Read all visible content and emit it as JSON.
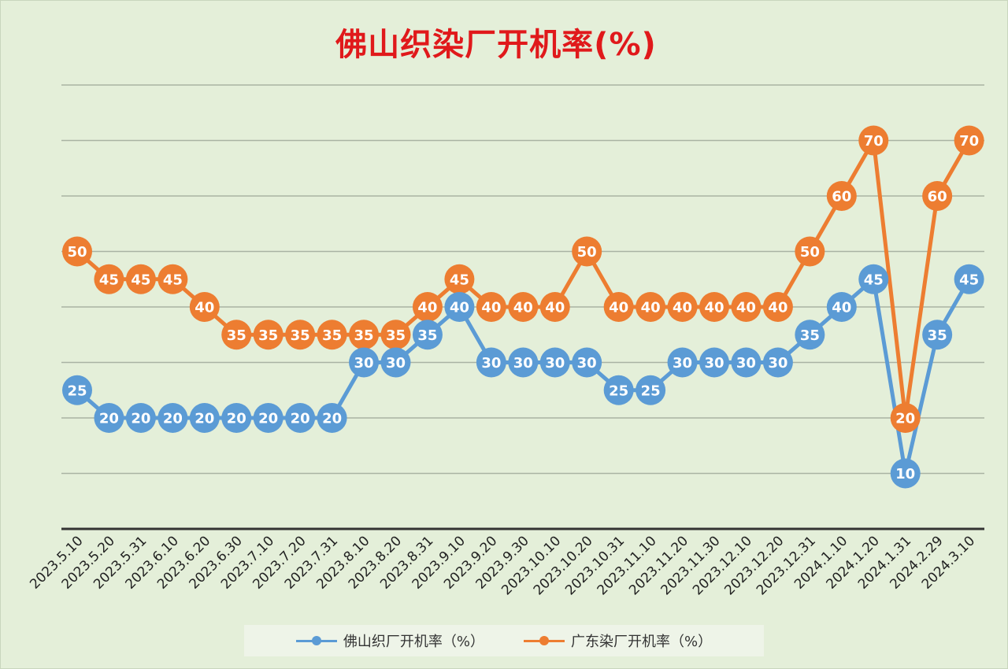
{
  "colors": {
    "blue": "#5b9bd5",
    "orange": "#ed7d31",
    "title": "#e0191b",
    "grid": "#a9b3a3",
    "axis": "#333333"
  },
  "chart_data": {
    "type": "line",
    "title": "佛山织染厂开机率(%)",
    "xlabel": "",
    "ylabel": "",
    "ylim": [
      0,
      80
    ],
    "grid": true,
    "legend_position": "bottom",
    "categories": [
      "2023.5.10",
      "2023.5.20",
      "2023.5.31",
      "2023.6.10",
      "2023.6.20",
      "2023.6.30",
      "2023.7.10",
      "2023.7.20",
      "2023.7.31",
      "2023.8.10",
      "2023.8.20",
      "2023.8.31",
      "2023.9.10",
      "2023.9.20",
      "2023.9.30",
      "2023.10.10",
      "2023.10.20",
      "2023.10.31",
      "2023.11.10",
      "2023.11.20",
      "2023.11.30",
      "2023.12.10",
      "2023.12.20",
      "2023.12.31",
      "2024.1.10",
      "2024.1.20",
      "2024.1.31",
      "2024.2.29",
      "2024.3.10"
    ],
    "series": [
      {
        "name": "佛山织厂开机率（%）",
        "color": "#5b9bd5",
        "values": [
          25,
          20,
          20,
          20,
          20,
          20,
          20,
          20,
          20,
          30,
          30,
          35,
          40,
          30,
          30,
          30,
          30,
          25,
          25,
          30,
          30,
          30,
          30,
          35,
          40,
          45,
          10,
          35,
          45
        ]
      },
      {
        "name": "广东染厂开机率（%）",
        "color": "#ed7d31",
        "values": [
          50,
          45,
          45,
          45,
          40,
          35,
          35,
          35,
          35,
          35,
          35,
          40,
          45,
          40,
          40,
          40,
          50,
          40,
          40,
          40,
          40,
          40,
          40,
          50,
          60,
          70,
          20,
          60,
          70
        ]
      }
    ]
  }
}
